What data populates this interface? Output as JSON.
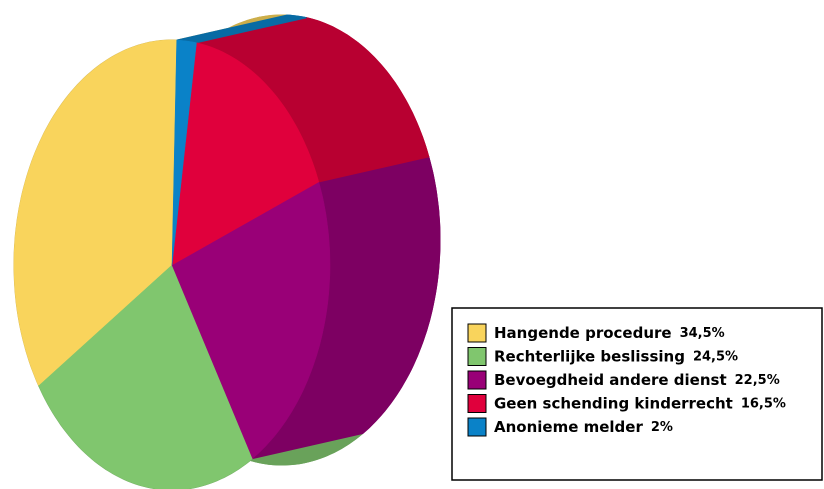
{
  "chart_data": {
    "type": "pie",
    "categories": [
      "Hangende procedure",
      "Rechterlijke beslissing",
      "Bevoegdheid andere dienst",
      "Geen schending kinderrecht",
      "Anonieme melder"
    ],
    "values": [
      34.5,
      24.5,
      22.5,
      16.5,
      2
    ],
    "value_labels": [
      "34,5%",
      "24,5%",
      "22,5%",
      "16,5%",
      "2%"
    ],
    "colors": [
      "#f9d45c",
      "#80c66e",
      "#990077",
      "#e0003c",
      "#0a82c8"
    ],
    "legend": "bottom-right"
  }
}
